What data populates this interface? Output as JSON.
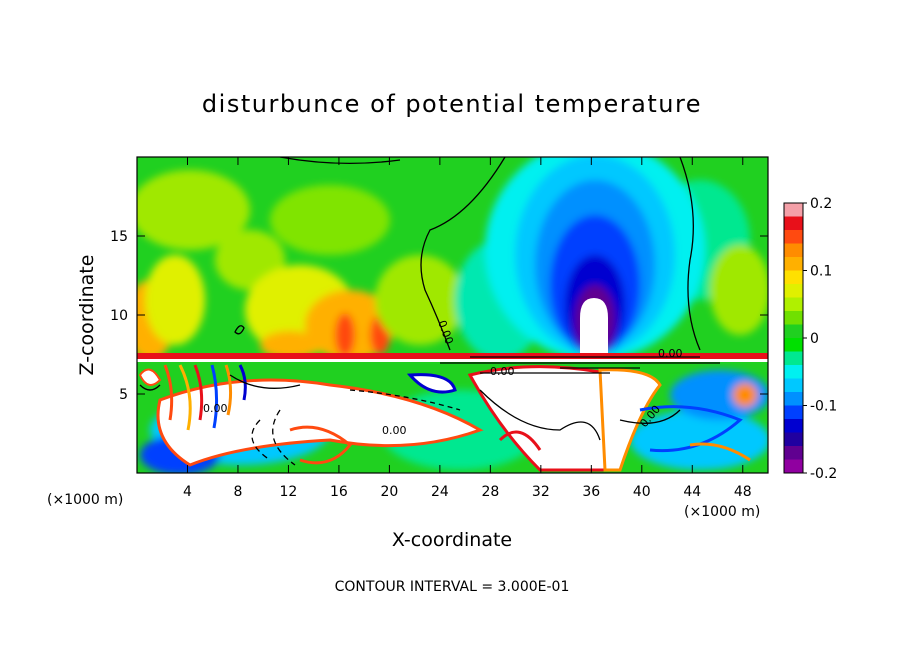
{
  "chart_data": {
    "type": "heatmap",
    "title": "disturbunce of potential temperature",
    "xlabel": "X-coordinate",
    "ylabel": "Z-coordinate",
    "x_unit_left": "(×1000 m)",
    "x_unit_right": "(×1000 m)",
    "footer": "CONTOUR INTERVAL = 3.000E-01",
    "xlim": [
      0,
      50
    ],
    "ylim": [
      0,
      20
    ],
    "x_ticks": [
      4,
      8,
      12,
      16,
      20,
      24,
      28,
      32,
      36,
      40,
      44,
      48
    ],
    "y_ticks": [
      5,
      10,
      15
    ],
    "colorbar": {
      "range": [
        -0.2,
        0.2
      ],
      "labels": [
        "0.2",
        "0.1",
        "0",
        "-0.1",
        "-0.2"
      ],
      "label_values": [
        0.2,
        0.1,
        0,
        -0.1,
        -0.2
      ],
      "colors": [
        "#f4a0a8",
        "#e8101a",
        "#ff4a10",
        "#ff8c00",
        "#ffb000",
        "#ffe000",
        "#e0f000",
        "#b0f000",
        "#70e000",
        "#20d020",
        "#00e000",
        "#00e890",
        "#00f0f0",
        "#00c8ff",
        "#0090ff",
        "#0040ff",
        "#0000d0",
        "#2000a0",
        "#600090",
        "#9000a0"
      ]
    },
    "contour_labels": [
      "0.00",
      "0.00",
      "0.00",
      "0.00",
      "0.00",
      "0.00"
    ]
  }
}
